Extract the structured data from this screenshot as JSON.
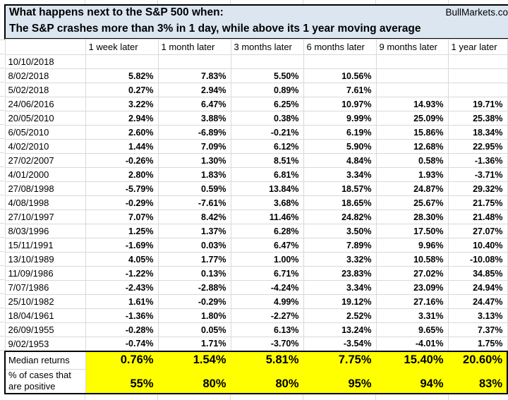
{
  "header": {
    "title": "What happens next to the S&P 500 when:",
    "brand": "BullMarkets.co",
    "subtitle": "The S&P crashes more than 3% in 1 day, while above its 1 year moving average"
  },
  "chart_data": {
    "type": "table",
    "columns": [
      "1 week later",
      "1 month later",
      "3 months later",
      "6 months later",
      "9 months later",
      "1 year later"
    ],
    "rows": [
      {
        "date": "10/10/2018",
        "values": [
          "",
          "",
          "",
          "",
          "",
          ""
        ]
      },
      {
        "date": "8/02/2018",
        "values": [
          "5.82%",
          "7.83%",
          "5.50%",
          "10.56%",
          "",
          ""
        ]
      },
      {
        "date": "5/02/2018",
        "values": [
          "0.27%",
          "2.94%",
          "0.89%",
          "7.61%",
          "",
          ""
        ]
      },
      {
        "date": "24/06/2016",
        "values": [
          "3.22%",
          "6.47%",
          "6.25%",
          "10.97%",
          "14.93%",
          "19.71%"
        ]
      },
      {
        "date": "20/05/2010",
        "values": [
          "2.94%",
          "3.88%",
          "0.38%",
          "9.99%",
          "25.09%",
          "25.38%"
        ]
      },
      {
        "date": "6/05/2010",
        "values": [
          "2.60%",
          "-6.89%",
          "-0.21%",
          "6.19%",
          "15.86%",
          "18.34%"
        ]
      },
      {
        "date": "4/02/2010",
        "values": [
          "1.44%",
          "7.09%",
          "6.12%",
          "5.90%",
          "12.68%",
          "22.95%"
        ]
      },
      {
        "date": "27/02/2007",
        "values": [
          "-0.26%",
          "1.30%",
          "8.51%",
          "4.84%",
          "0.58%",
          "-1.36%"
        ]
      },
      {
        "date": "4/01/2000",
        "values": [
          "2.80%",
          "1.83%",
          "6.81%",
          "3.34%",
          "1.93%",
          "-3.71%"
        ]
      },
      {
        "date": "27/08/1998",
        "values": [
          "-5.79%",
          "0.59%",
          "13.84%",
          "18.57%",
          "24.87%",
          "29.32%"
        ]
      },
      {
        "date": "4/08/1998",
        "values": [
          "-0.29%",
          "-7.61%",
          "3.68%",
          "18.65%",
          "25.67%",
          "21.75%"
        ]
      },
      {
        "date": "27/10/1997",
        "values": [
          "7.07%",
          "8.42%",
          "11.46%",
          "24.82%",
          "28.30%",
          "21.48%"
        ]
      },
      {
        "date": "8/03/1996",
        "values": [
          "1.25%",
          "1.37%",
          "6.28%",
          "3.50%",
          "17.50%",
          "27.07%"
        ]
      },
      {
        "date": "15/11/1991",
        "values": [
          "-1.69%",
          "0.03%",
          "6.47%",
          "7.89%",
          "9.96%",
          "10.40%"
        ]
      },
      {
        "date": "13/10/1989",
        "values": [
          "4.05%",
          "1.77%",
          "1.00%",
          "3.32%",
          "10.58%",
          "-10.08%"
        ]
      },
      {
        "date": "11/09/1986",
        "values": [
          "-1.22%",
          "0.13%",
          "6.71%",
          "23.83%",
          "27.02%",
          "34.85%"
        ]
      },
      {
        "date": "7/07/1986",
        "values": [
          "-2.43%",
          "-2.88%",
          "-4.24%",
          "3.34%",
          "23.09%",
          "24.94%"
        ]
      },
      {
        "date": "25/10/1982",
        "values": [
          "1.61%",
          "-0.29%",
          "4.99%",
          "19.12%",
          "27.16%",
          "24.47%"
        ]
      },
      {
        "date": "18/04/1961",
        "values": [
          "-1.36%",
          "1.80%",
          "-2.27%",
          "2.52%",
          "3.31%",
          "3.13%"
        ]
      },
      {
        "date": "26/09/1955",
        "values": [
          "-0.28%",
          "0.05%",
          "6.13%",
          "13.24%",
          "9.65%",
          "7.37%"
        ]
      },
      {
        "date": "9/02/1953",
        "values": [
          "-0.74%",
          "1.71%",
          "-3.70%",
          "-3.54%",
          "-4.01%",
          "1.75%"
        ]
      }
    ],
    "summary": {
      "median_label": "Median returns",
      "median_values": [
        "0.76%",
        "1.54%",
        "5.81%",
        "7.75%",
        "15.40%",
        "20.60%"
      ],
      "pct_label": "% of cases that are positive",
      "pct_values": [
        "55%",
        "80%",
        "80%",
        "95%",
        "94%",
        "83%"
      ]
    }
  },
  "colors": {
    "positive_bg": "#c9e7d0",
    "positive_text": "#1e7145",
    "negative_bg": "#fbc8cc",
    "negative_text": "#9c0a20",
    "summary_bg": "#ffff00",
    "title_bg": "#dce6f1",
    "gridline": "#d9d9d9"
  }
}
